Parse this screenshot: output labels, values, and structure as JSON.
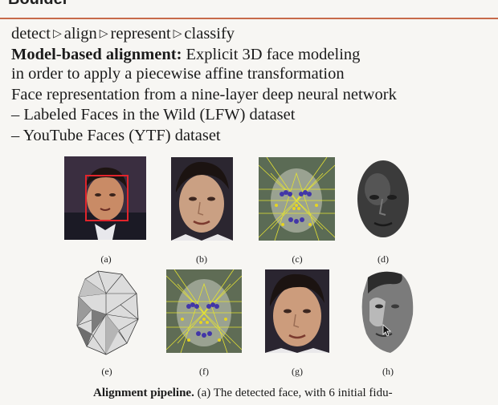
{
  "header": {
    "title": "Boulder"
  },
  "body": {
    "pipeline": [
      "detect",
      "align",
      "represent",
      "classify"
    ],
    "alignment_lead": "Model-based alignment:",
    "alignment_text": "Explicit 3D face modeling",
    "alignment_text_2": "in order to apply a piecewise affine transformation",
    "representation_text": "Face representation from a nine-layer deep neural network",
    "datasets": [
      "– Labeled Faces in the Wild (LFW) dataset",
      "– YouTube Faces (YTF) dataset"
    ]
  },
  "figures": {
    "labels": [
      "(a)",
      "(b)",
      "(c)",
      "(d)",
      "(e)",
      "(f)",
      "(g)",
      "(h)"
    ]
  },
  "caption": {
    "lead": "Alignment pipeline.",
    "text": "(a) The detected face, with 6 initial fidu-"
  }
}
